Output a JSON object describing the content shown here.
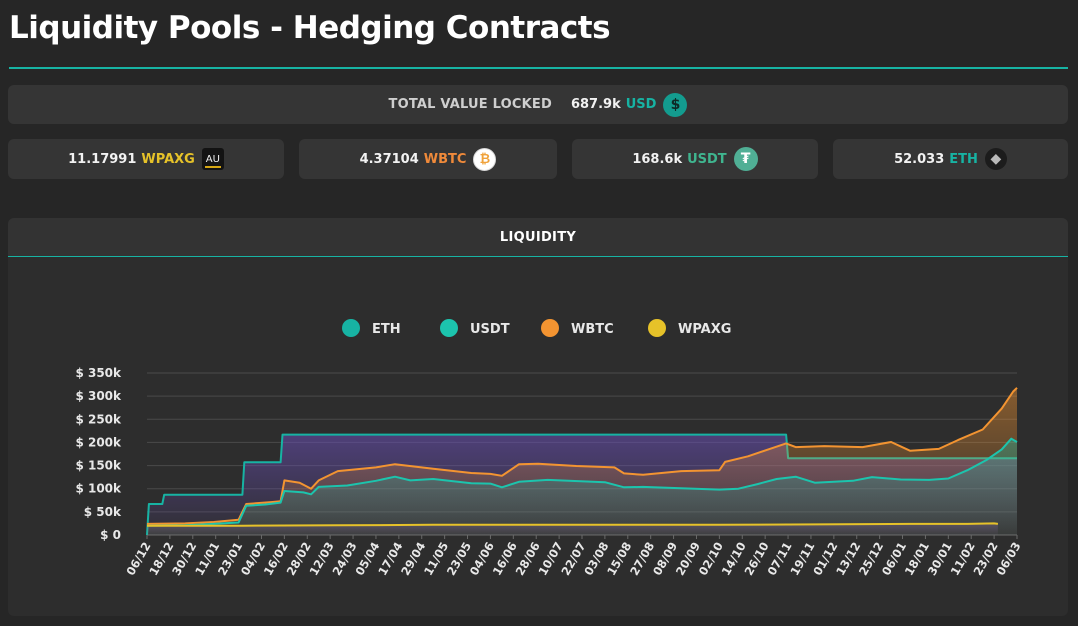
{
  "page": {
    "title": "Liquidity Pools - Hedging Contracts"
  },
  "tvl": {
    "label": "TOTAL VALUE LOCKED",
    "amount": "687.9k",
    "unit": "USD",
    "icon": "dollar-icon",
    "unit_color": "#17b3a3"
  },
  "assets": [
    {
      "id": "wpaxg",
      "amount": "11.17991",
      "unit": "WPAXG",
      "unit_color": "#e6c229",
      "icon": "wpaxg-token-icon",
      "icon_text": "AU"
    },
    {
      "id": "wbtc",
      "amount": "4.37104",
      "unit": "WBTC",
      "unit_color": "#f08a3a",
      "icon": "bitcoin-icon",
      "icon_text": "₿"
    },
    {
      "id": "usdt",
      "amount": "168.6k",
      "unit": "USDT",
      "unit_color": "#3fb58f",
      "icon": "tether-icon",
      "icon_text": "₮"
    },
    {
      "id": "eth",
      "amount": "52.033",
      "unit": "ETH",
      "unit_color": "#17b3a3",
      "icon": "ethereum-icon",
      "icon_text": "◆"
    }
  ],
  "chart_panel": {
    "title": "LIQUIDITY"
  },
  "chart_data": {
    "type": "area",
    "title": "LIQUIDITY",
    "legend_position": "top-center",
    "ylim": [
      0,
      350000
    ],
    "y_ticks": [
      0,
      50000,
      100000,
      150000,
      200000,
      250000,
      300000,
      350000
    ],
    "y_tick_labels": [
      "$ 0",
      "$ 50k",
      "$ 100k",
      "$ 150k",
      "$ 200k",
      "$ 250k",
      "$ 300k",
      "$ 350k"
    ],
    "x_range_days": [
      0,
      456
    ],
    "x_tick_labels": [
      "06/12",
      "18/12",
      "30/12",
      "11/01",
      "23/01",
      "04/02",
      "16/02",
      "28/02",
      "12/03",
      "24/03",
      "05/04",
      "17/04",
      "29/04",
      "11/05",
      "23/05",
      "04/06",
      "16/06",
      "28/06",
      "10/07",
      "22/07",
      "03/08",
      "15/08",
      "27/08",
      "08/09",
      "20/09",
      "02/10",
      "14/10",
      "26/10",
      "07/11",
      "19/11",
      "01/12",
      "13/12",
      "25/12",
      "06/01",
      "18/01",
      "30/01",
      "11/02",
      "23/02",
      "06/03"
    ],
    "x_tick_step_days": 12,
    "series": [
      {
        "name": "ETH",
        "color": "#17b3a3",
        "points": [
          [
            0,
            0
          ],
          [
            1,
            67000
          ],
          [
            8,
            67000
          ],
          [
            9,
            87000
          ],
          [
            50,
            87000
          ],
          [
            51,
            157000
          ],
          [
            70,
            157000
          ],
          [
            71,
            217000
          ],
          [
            335,
            217000
          ],
          [
            336,
            166000
          ],
          [
            456,
            166000
          ]
        ]
      },
      {
        "name": "USDT",
        "color": "#1cc4ad",
        "points": [
          [
            0,
            20000
          ],
          [
            20,
            21000
          ],
          [
            30,
            23000
          ],
          [
            48,
            27000
          ],
          [
            52,
            63000
          ],
          [
            62,
            66000
          ],
          [
            70,
            70000
          ],
          [
            72,
            95000
          ],
          [
            82,
            92000
          ],
          [
            86,
            88000
          ],
          [
            90,
            104000
          ],
          [
            105,
            107000
          ],
          [
            120,
            117000
          ],
          [
            130,
            126000
          ],
          [
            138,
            118000
          ],
          [
            150,
            121000
          ],
          [
            170,
            112000
          ],
          [
            180,
            111000
          ],
          [
            186,
            103000
          ],
          [
            195,
            115000
          ],
          [
            210,
            119000
          ],
          [
            240,
            114000
          ],
          [
            250,
            103000
          ],
          [
            260,
            104000
          ],
          [
            280,
            101000
          ],
          [
            300,
            98000
          ],
          [
            310,
            100000
          ],
          [
            320,
            110000
          ],
          [
            330,
            121000
          ],
          [
            340,
            126000
          ],
          [
            350,
            113000
          ],
          [
            370,
            117000
          ],
          [
            380,
            125000
          ],
          [
            395,
            120000
          ],
          [
            410,
            119000
          ],
          [
            420,
            122000
          ],
          [
            430,
            140000
          ],
          [
            440,
            162000
          ],
          [
            448,
            185000
          ],
          [
            453,
            208000
          ],
          [
            456,
            201000
          ]
        ]
      },
      {
        "name": "WBTC",
        "color": "#f39431",
        "points": [
          [
            0,
            24000
          ],
          [
            20,
            25000
          ],
          [
            35,
            28000
          ],
          [
            48,
            33000
          ],
          [
            52,
            67000
          ],
          [
            65,
            71000
          ],
          [
            70,
            73000
          ],
          [
            72,
            118000
          ],
          [
            80,
            113000
          ],
          [
            86,
            100000
          ],
          [
            90,
            118000
          ],
          [
            100,
            138000
          ],
          [
            120,
            146000
          ],
          [
            130,
            153000
          ],
          [
            140,
            148000
          ],
          [
            150,
            143000
          ],
          [
            170,
            134000
          ],
          [
            180,
            132000
          ],
          [
            186,
            128000
          ],
          [
            195,
            153000
          ],
          [
            205,
            154000
          ],
          [
            225,
            149000
          ],
          [
            245,
            146000
          ],
          [
            250,
            133000
          ],
          [
            260,
            130000
          ],
          [
            280,
            138000
          ],
          [
            300,
            140000
          ],
          [
            303,
            158000
          ],
          [
            315,
            170000
          ],
          [
            335,
            198000
          ],
          [
            340,
            190000
          ],
          [
            355,
            192000
          ],
          [
            375,
            190000
          ],
          [
            390,
            201000
          ],
          [
            400,
            182000
          ],
          [
            415,
            186000
          ],
          [
            425,
            205000
          ],
          [
            438,
            228000
          ],
          [
            448,
            273000
          ],
          [
            454,
            310000
          ],
          [
            456,
            318000
          ]
        ]
      },
      {
        "name": "WPAXG",
        "color": "#e6c229",
        "points": [
          [
            0,
            20000
          ],
          [
            50,
            20000
          ],
          [
            100,
            21000
          ],
          [
            150,
            22000
          ],
          [
            200,
            22000
          ],
          [
            250,
            22000
          ],
          [
            300,
            22000
          ],
          [
            350,
            23000
          ],
          [
            400,
            24000
          ],
          [
            430,
            24000
          ],
          [
            444,
            25000
          ],
          [
            446,
            24000
          ]
        ]
      }
    ]
  }
}
